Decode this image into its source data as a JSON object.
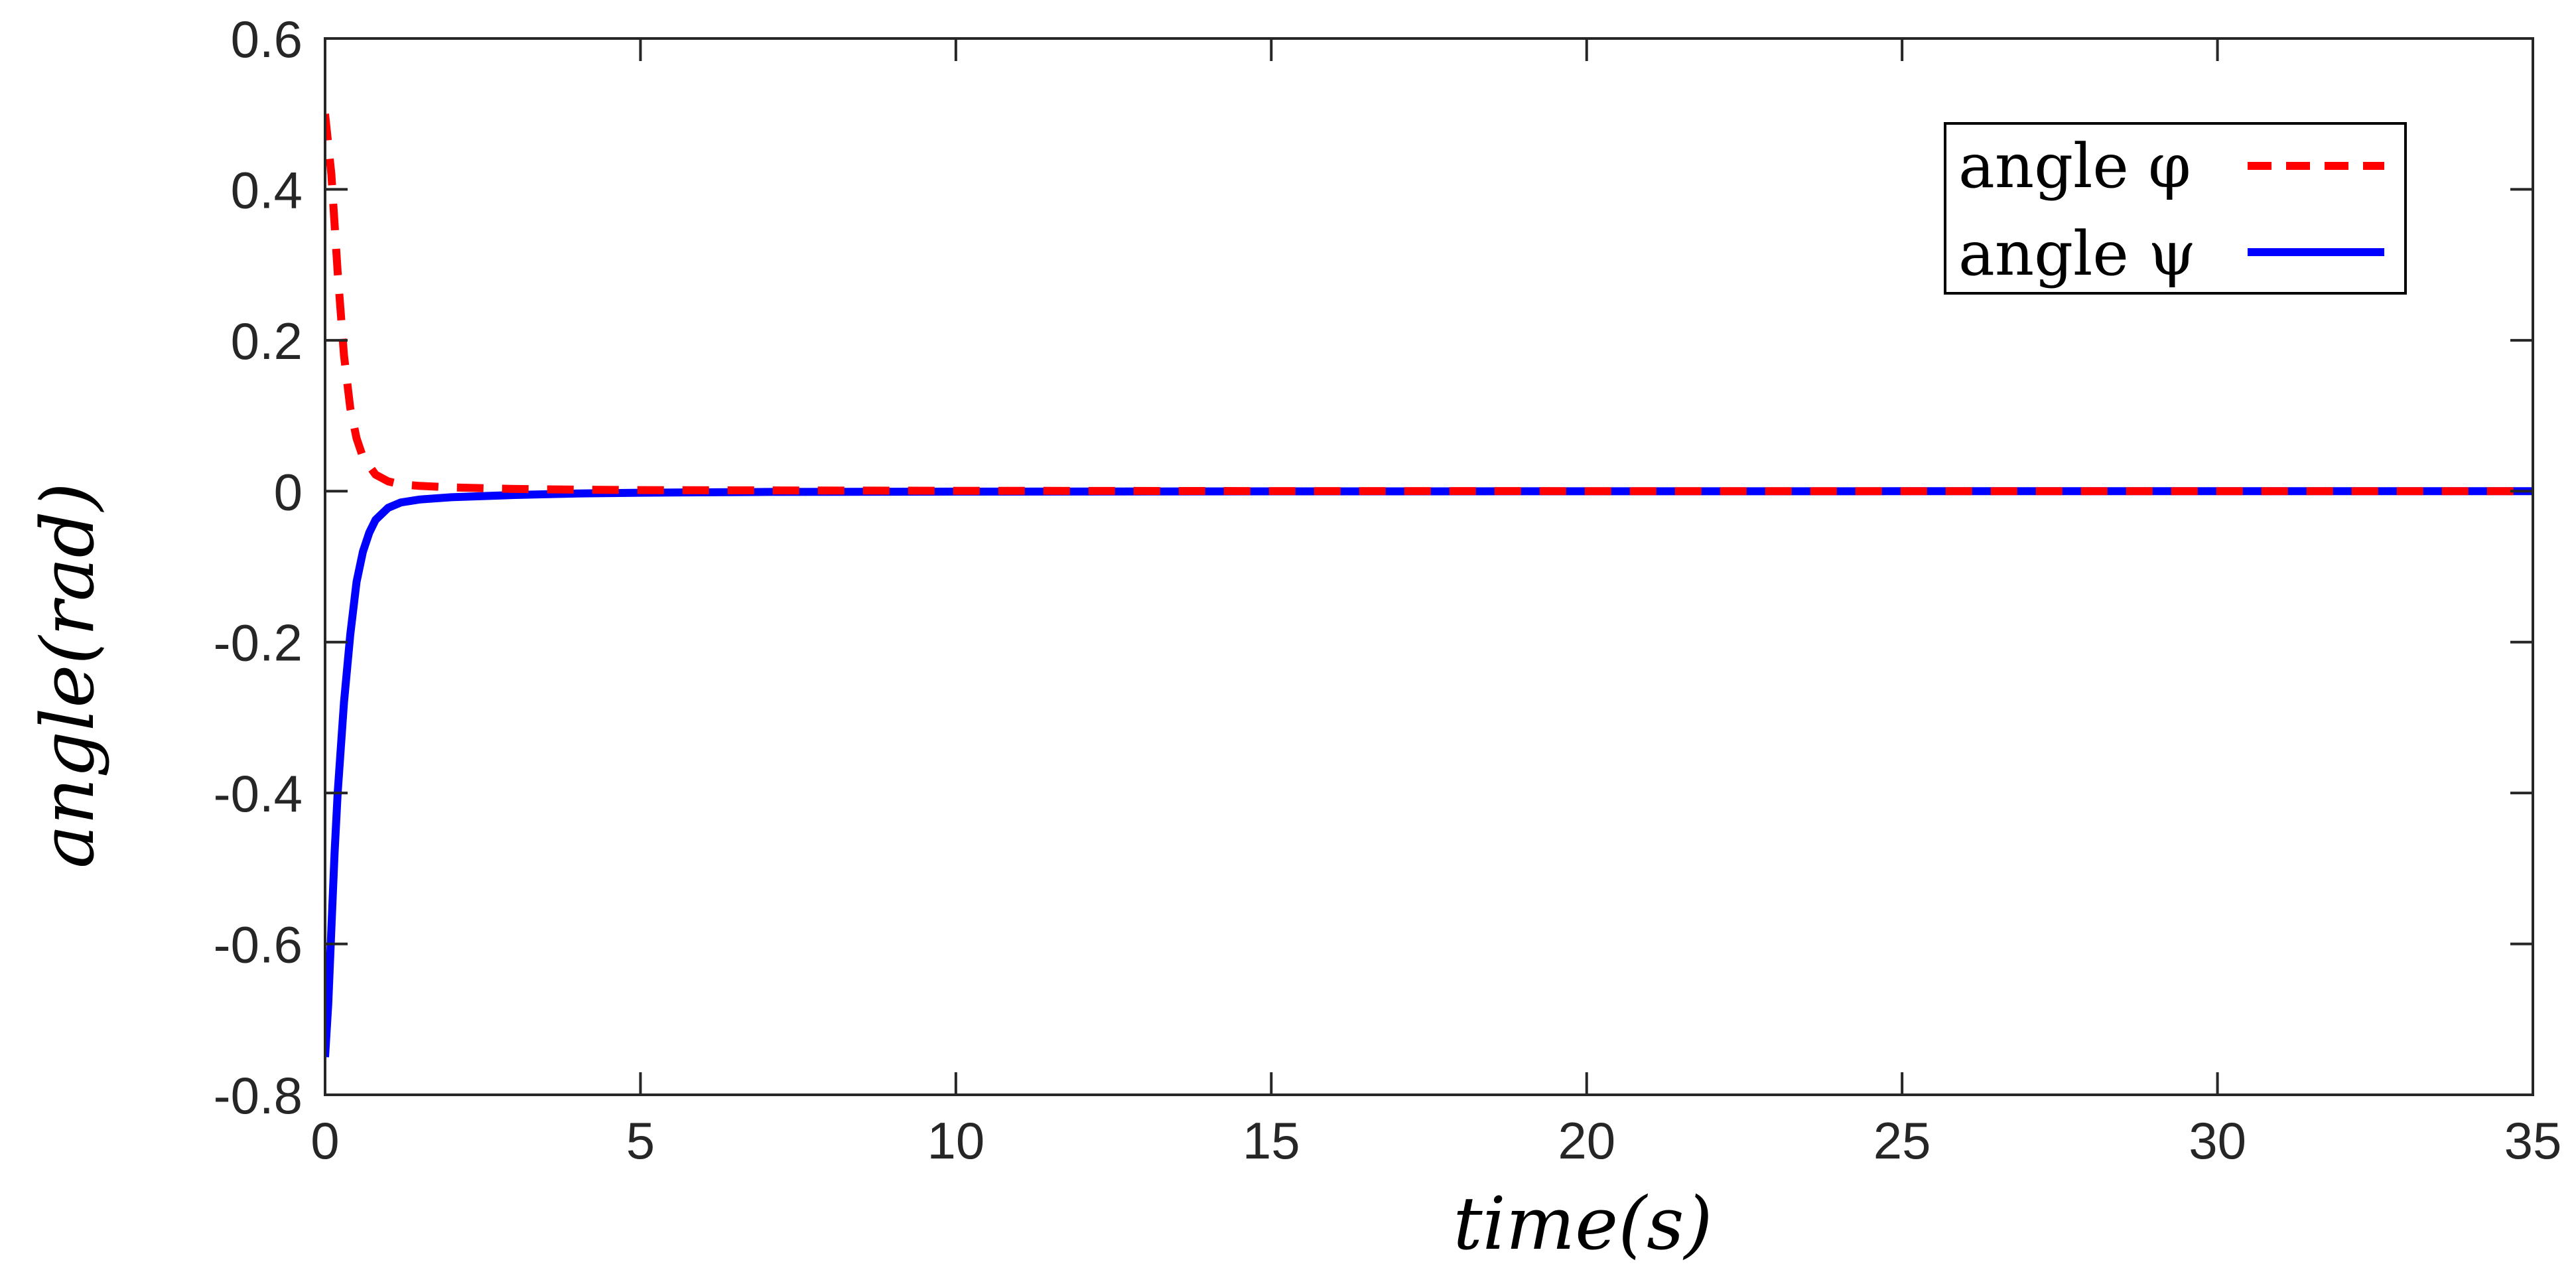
{
  "chart_data": {
    "type": "line",
    "title": "",
    "xlabel": "time(s)",
    "ylabel": "angle(rad)",
    "xlim": [
      0,
      35
    ],
    "ylim": [
      -0.8,
      0.6
    ],
    "xticks": [
      0,
      5,
      10,
      15,
      20,
      25,
      30,
      35
    ],
    "xtick_labels": [
      "0",
      "5",
      "10",
      "15",
      "20",
      "25",
      "30",
      "35"
    ],
    "yticks": [
      0.6,
      0.4,
      0.2,
      0,
      -0.2,
      -0.4,
      -0.6,
      -0.8
    ],
    "ytick_labels": [
      "0.6",
      "0.4",
      "0.2",
      "0",
      "-0.2",
      "-0.4",
      "-0.6",
      "-0.8"
    ],
    "grid": false,
    "legend": {
      "position": "top-right",
      "entries": [
        "angle φ",
        "angle ψ"
      ]
    },
    "series": [
      {
        "name": "angle φ",
        "color": "#ff0000",
        "style": "dashed",
        "x": [
          0,
          0.1,
          0.2,
          0.3,
          0.4,
          0.5,
          0.6,
          0.8,
          1.0,
          1.2,
          1.5,
          2,
          3,
          4,
          5,
          7,
          10,
          15,
          20,
          25,
          30,
          35
        ],
        "y": [
          0.5,
          0.42,
          0.29,
          0.18,
          0.11,
          0.07,
          0.045,
          0.022,
          0.013,
          0.009,
          0.007,
          0.005,
          0.003,
          0.002,
          0.0015,
          0.001,
          0.0005,
          0.0002,
          0.0001,
          0,
          0,
          0
        ]
      },
      {
        "name": "angle ψ",
        "color": "#0000ff",
        "style": "solid",
        "x": [
          0,
          0.05,
          0.1,
          0.15,
          0.2,
          0.3,
          0.4,
          0.5,
          0.6,
          0.7,
          0.8,
          1.0,
          1.2,
          1.5,
          2,
          3,
          4,
          5,
          7,
          10,
          15,
          20,
          25,
          30,
          35
        ],
        "y": [
          -0.75,
          -0.68,
          -0.58,
          -0.48,
          -0.4,
          -0.28,
          -0.19,
          -0.12,
          -0.08,
          -0.055,
          -0.038,
          -0.022,
          -0.015,
          -0.011,
          -0.008,
          -0.005,
          -0.003,
          -0.002,
          -0.001,
          -0.0005,
          -0.0002,
          -0.0001,
          0,
          0,
          0
        ]
      }
    ]
  }
}
